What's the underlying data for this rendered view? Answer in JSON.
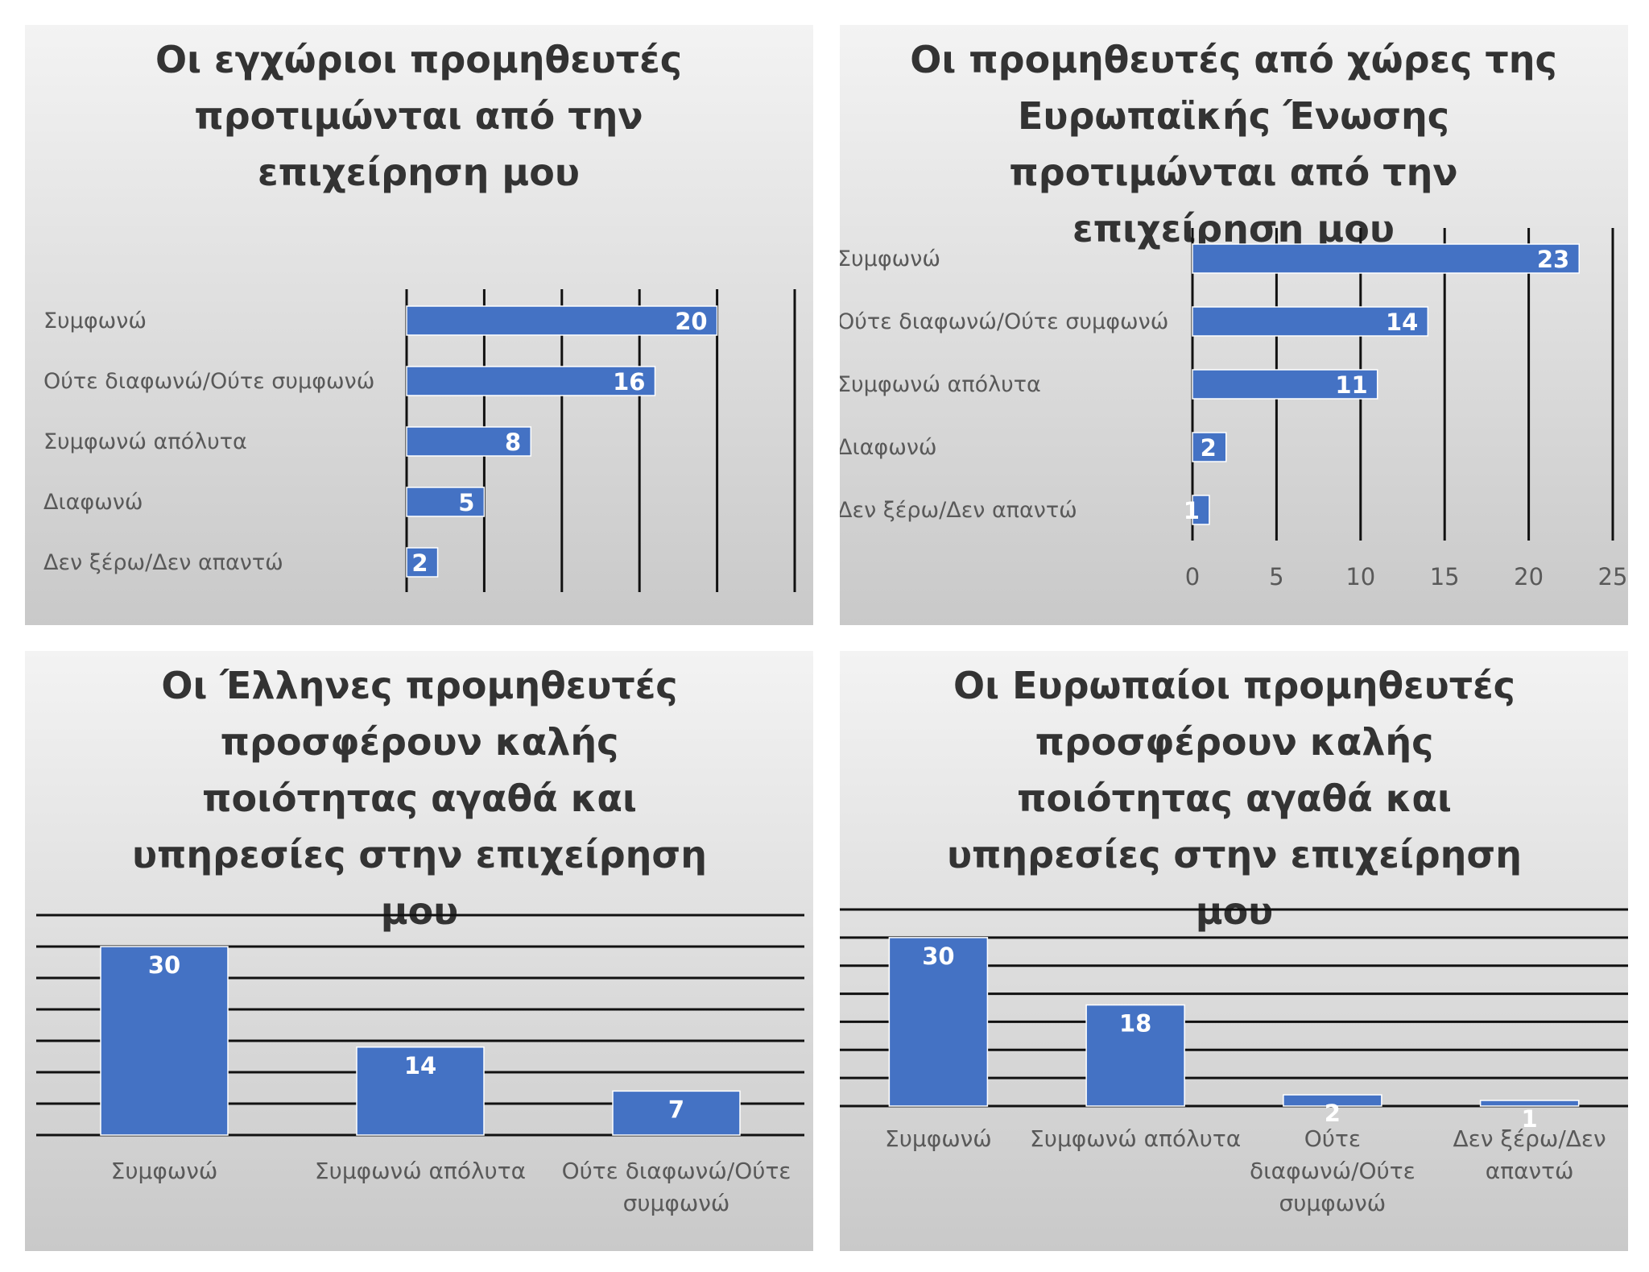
{
  "colors": {
    "bar": "#4472C4",
    "grid": "#111111",
    "label": "#595959",
    "data_label": "#ffffff",
    "title": "#333333"
  },
  "chart_data": [
    {
      "type": "bar",
      "orientation": "horizontal",
      "title": "Οι εγχώριοι προμηθευτές προτιμώνται από την επιχείρηση μου",
      "categories": [
        "Συμφωνώ",
        "Ούτε διαφωνώ/Ούτε συμφωνώ",
        "Συμφωνώ απόλυτα",
        "Διαφωνώ",
        "Δεν ξέρω/Δεν απαντώ"
      ],
      "values": [
        20,
        16,
        8,
        5,
        2
      ],
      "xlim": [
        0,
        25
      ],
      "grid": true,
      "tick_labels_shown": false
    },
    {
      "type": "bar",
      "orientation": "horizontal",
      "title": "Οι προμηθευτές από χώρες της Ευρωπαϊκής Ένωσης προτιμώνται από την επιχείρηση μου",
      "categories": [
        "Συμφωνώ",
        "Ούτε διαφωνώ/Ούτε συμφωνώ",
        "Συμφωνώ απόλυτα",
        "Διαφωνώ",
        "Δεν ξέρω/Δεν απαντώ"
      ],
      "values": [
        23,
        14,
        11,
        2,
        1
      ],
      "xlim": [
        0,
        25
      ],
      "xticks": [
        "0",
        "5",
        "10",
        "15",
        "20",
        "25"
      ],
      "grid": true,
      "tick_labels_shown": true
    },
    {
      "type": "bar",
      "orientation": "vertical",
      "title": "Οι Έλληνες προμηθευτές προσφέρουν καλής ποιότητας αγαθά και υπηρεσίες στην επιχείρηση μου",
      "categories": [
        "Συμφωνώ",
        "Συμφωνώ απόλυτα",
        "Ούτε διαφωνώ/Ούτε συμφωνώ"
      ],
      "values": [
        30,
        14,
        7
      ],
      "ylim": [
        0,
        35
      ],
      "grid": true
    },
    {
      "type": "bar",
      "orientation": "vertical",
      "title": "Οι Ευρωπαίοι προμηθευτές προσφέρουν καλής ποιότητας αγαθά και υπηρεσίες στην επιχείρηση μου",
      "categories": [
        "Συμφωνώ",
        "Συμφωνώ απόλυτα",
        "Ούτε διαφωνώ/Ούτε συμφωνώ",
        "Δεν ξέρω/Δεν απαντώ"
      ],
      "values": [
        30,
        18,
        2,
        1
      ],
      "ylim": [
        0,
        35
      ],
      "grid": true
    }
  ]
}
